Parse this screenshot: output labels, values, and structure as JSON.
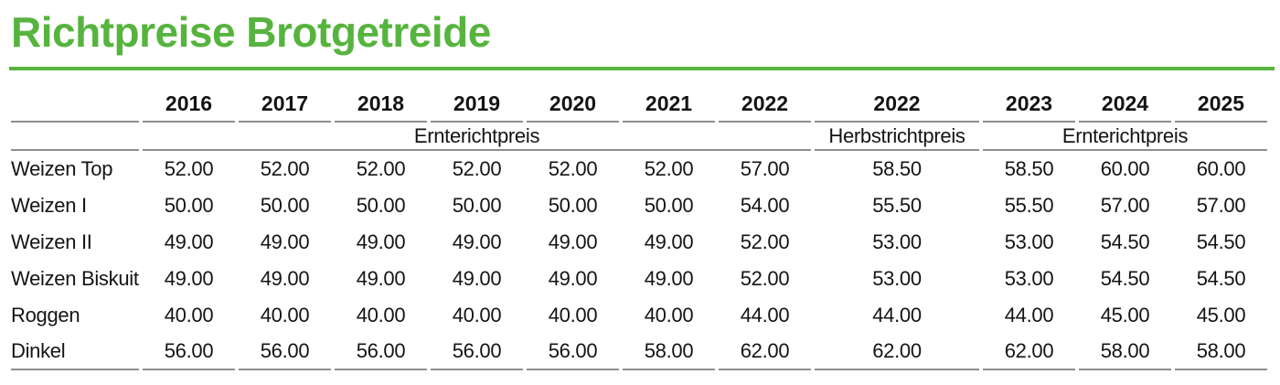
{
  "title": "Richtpreise Brotgetreide",
  "theme": {
    "accent_green": "#56b43e",
    "rule_gray": "#8e8e8e"
  },
  "table": {
    "year_headers": [
      "2016",
      "2017",
      "2018",
      "2019",
      "2020",
      "2021",
      "2022",
      "2022",
      "2023",
      "2024",
      "2025"
    ],
    "period_headers": [
      {
        "label": "Ernterichtpreis",
        "span": 7
      },
      {
        "label": "Herbstrichtpreis",
        "span": 1
      },
      {
        "label": "Ernterichtpreis",
        "span": 3
      }
    ],
    "rows": [
      {
        "label": "Weizen Top",
        "values": [
          "52.00",
          "52.00",
          "52.00",
          "52.00",
          "52.00",
          "52.00",
          "57.00",
          "58.50",
          "58.50",
          "60.00",
          "60.00"
        ]
      },
      {
        "label": "Weizen I",
        "values": [
          "50.00",
          "50.00",
          "50.00",
          "50.00",
          "50.00",
          "50.00",
          "54.00",
          "55.50",
          "55.50",
          "57.00",
          "57.00"
        ]
      },
      {
        "label": "Weizen II",
        "values": [
          "49.00",
          "49.00",
          "49.00",
          "49.00",
          "49.00",
          "49.00",
          "52.00",
          "53.00",
          "53.00",
          "54.50",
          "54.50"
        ]
      },
      {
        "label": "Weizen Biskuit",
        "values": [
          "49.00",
          "49.00",
          "49.00",
          "49.00",
          "49.00",
          "49.00",
          "52.00",
          "53.00",
          "53.00",
          "54.50",
          "54.50"
        ]
      },
      {
        "label": "Roggen",
        "values": [
          "40.00",
          "40.00",
          "40.00",
          "40.00",
          "40.00",
          "40.00",
          "44.00",
          "44.00",
          "44.00",
          "45.00",
          "45.00"
        ]
      },
      {
        "label": "Dinkel",
        "values": [
          "56.00",
          "56.00",
          "56.00",
          "56.00",
          "56.00",
          "58.00",
          "62.00",
          "62.00",
          "62.00",
          "58.00",
          "58.00"
        ]
      }
    ]
  }
}
